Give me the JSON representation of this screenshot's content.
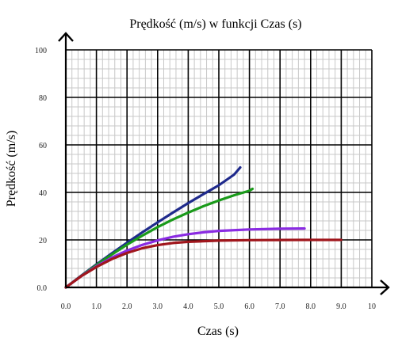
{
  "chart_data": {
    "type": "line",
    "title": "Prędkość (m/s) w funkcji Czas (s)",
    "xlabel": "Czas (s)",
    "ylabel": "Prędkość (m/s)",
    "xlim": [
      0,
      10
    ],
    "ylim": [
      0,
      100
    ],
    "x_ticks": [
      "0.0",
      "1.0",
      "2.0",
      "3.0",
      "4.0",
      "5.0",
      "6.0",
      "7.0",
      "8.0",
      "9.0",
      "10"
    ],
    "y_ticks": [
      "0.0",
      "20",
      "40",
      "60",
      "80",
      "100"
    ],
    "grid": true,
    "legend": "none",
    "colors": {
      "title_text": "#b22222",
      "axis_label_text": "#b22222",
      "major_grid": "#000000",
      "minor_grid": "#c8c8c8"
    },
    "series": [
      {
        "color": "#1f2a8c",
        "x": [
          0,
          0.5,
          1.0,
          1.5,
          2.0,
          2.5,
          3.0,
          3.5,
          4.0,
          4.5,
          5.0,
          5.5,
          5.7
        ],
        "y": [
          0,
          4.9,
          9.7,
          14.3,
          18.8,
          23.2,
          27.4,
          31.5,
          35.5,
          39.3,
          43.0,
          47.5,
          50.5
        ]
      },
      {
        "color": "#1a9a1a",
        "x": [
          0,
          0.5,
          1.0,
          1.5,
          2.0,
          2.5,
          3.0,
          3.5,
          4.0,
          4.5,
          5.0,
          5.5,
          6.0,
          6.1
        ],
        "y": [
          0,
          4.8,
          9.4,
          13.8,
          18.0,
          21.8,
          25.4,
          28.6,
          31.5,
          34.2,
          36.6,
          38.8,
          40.7,
          41.5
        ]
      },
      {
        "color": "#8a2be2",
        "x": [
          0,
          0.5,
          1.0,
          1.5,
          2.0,
          2.5,
          3.0,
          3.5,
          4.0,
          4.5,
          5.0,
          6.0,
          7.0,
          7.8
        ],
        "y": [
          0,
          4.7,
          8.9,
          12.5,
          15.5,
          17.9,
          19.8,
          21.3,
          22.4,
          23.2,
          23.8,
          24.4,
          24.7,
          24.8
        ]
      },
      {
        "color": "#a0161c",
        "x": [
          0,
          0.5,
          1.0,
          1.5,
          2.0,
          2.5,
          3.0,
          3.5,
          4.0,
          5.0,
          6.0,
          7.0,
          8.0,
          9.0
        ],
        "y": [
          0,
          4.7,
          8.6,
          11.9,
          14.5,
          16.5,
          17.8,
          18.7,
          19.2,
          19.7,
          19.9,
          19.95,
          20.0,
          20.0
        ]
      }
    ]
  }
}
